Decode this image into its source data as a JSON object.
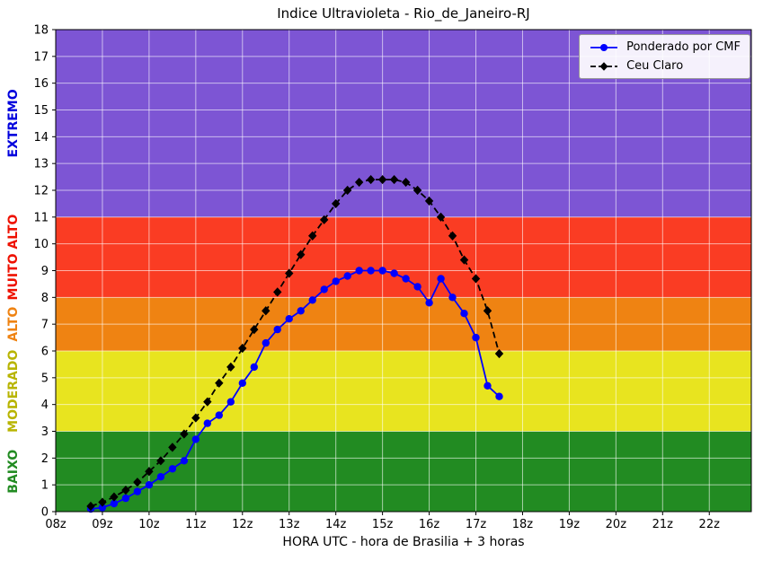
{
  "chart_data": {
    "type": "line",
    "title": "Indice Ultravioleta - Rio_de_Janeiro-RJ",
    "xlabel": "HORA UTC - hora de Brasilia + 3 horas",
    "ylabel": "",
    "xlim": [
      8,
      22.9
    ],
    "ylim": [
      0,
      18
    ],
    "grid": true,
    "grid_color": "rgba(255,255,255,0.6)",
    "x_ticks": [
      {
        "value": 8,
        "label": "08z"
      },
      {
        "value": 9,
        "label": "09z"
      },
      {
        "value": 10,
        "label": "10z"
      },
      {
        "value": 11,
        "label": "11z"
      },
      {
        "value": 12,
        "label": "12z"
      },
      {
        "value": 13,
        "label": "13z"
      },
      {
        "value": 14,
        "label": "14z"
      },
      {
        "value": 15,
        "label": "15z"
      },
      {
        "value": 16,
        "label": "16z"
      },
      {
        "value": 17,
        "label": "17z"
      },
      {
        "value": 18,
        "label": "18z"
      },
      {
        "value": 19,
        "label": "19z"
      },
      {
        "value": 20,
        "label": "20z"
      },
      {
        "value": 21,
        "label": "21z"
      },
      {
        "value": 22,
        "label": "22z"
      }
    ],
    "y_ticks": [
      0,
      1,
      2,
      3,
      4,
      5,
      6,
      7,
      8,
      9,
      10,
      11,
      12,
      13,
      14,
      15,
      16,
      17,
      18
    ],
    "bands": [
      {
        "label": "BAIXO",
        "from": 0,
        "to": 3,
        "color": "#228B22",
        "label_color": "#228B22"
      },
      {
        "label": "MODERADO",
        "from": 3,
        "to": 6,
        "color": "#e8e41f",
        "label_color": "#b8b400"
      },
      {
        "label": "ALTO",
        "from": 6,
        "to": 8,
        "color": "#ef8312",
        "label_color": "#ef8312"
      },
      {
        "label": "MUITO ALTO",
        "from": 8,
        "to": 11,
        "color": "#fa3c23",
        "label_color": "#ee1100"
      },
      {
        "label": "EXTREMO",
        "from": 11,
        "to": 18,
        "color": "#7d55d4",
        "label_color": "#0000dd"
      }
    ],
    "series": [
      {
        "name": "Ponderado por CMF",
        "color": "#0000ff",
        "marker": "circle",
        "line_style": "solid",
        "x": [
          8.75,
          9,
          9.25,
          9.5,
          9.75,
          10,
          10.25,
          10.5,
          10.75,
          11,
          11.25,
          11.5,
          11.75,
          12,
          12.25,
          12.5,
          12.75,
          13,
          13.25,
          13.5,
          13.75,
          14,
          14.25,
          14.5,
          14.75,
          15,
          15.25,
          15.5,
          15.75,
          16,
          16.25,
          16.5,
          16.75,
          17,
          17.25,
          17.5
        ],
        "values": [
          0.1,
          0.15,
          0.3,
          0.5,
          0.75,
          1.0,
          1.3,
          1.6,
          1.9,
          2.7,
          3.3,
          3.6,
          4.1,
          4.8,
          5.4,
          6.3,
          6.8,
          7.2,
          7.5,
          7.9,
          8.3,
          8.6,
          8.8,
          9.0,
          9.0,
          9.0,
          8.9,
          8.7,
          8.4,
          7.8,
          8.7,
          8.0,
          7.4,
          6.5,
          4.7,
          4.3
        ]
      },
      {
        "name": "Ceu Claro",
        "color": "#000000",
        "marker": "diamond",
        "line_style": "dashed",
        "x": [
          8.75,
          9,
          9.25,
          9.5,
          9.75,
          10,
          10.25,
          10.5,
          10.75,
          11,
          11.25,
          11.5,
          11.75,
          12,
          12.25,
          12.5,
          12.75,
          13,
          13.25,
          13.5,
          13.75,
          14,
          14.25,
          14.5,
          14.75,
          15,
          15.25,
          15.5,
          15.75,
          16,
          16.25,
          16.5,
          16.75,
          17,
          17.25,
          17.5
        ],
        "values": [
          0.2,
          0.35,
          0.55,
          0.8,
          1.1,
          1.5,
          1.9,
          2.4,
          2.9,
          3.5,
          4.1,
          4.8,
          5.4,
          6.1,
          6.8,
          7.5,
          8.2,
          8.9,
          9.6,
          10.3,
          10.9,
          11.5,
          12.0,
          12.3,
          12.4,
          12.4,
          12.4,
          12.3,
          12.0,
          11.6,
          11.0,
          10.3,
          9.4,
          8.7,
          7.5,
          5.9
        ]
      }
    ],
    "legend": {
      "position": "upper right"
    }
  }
}
